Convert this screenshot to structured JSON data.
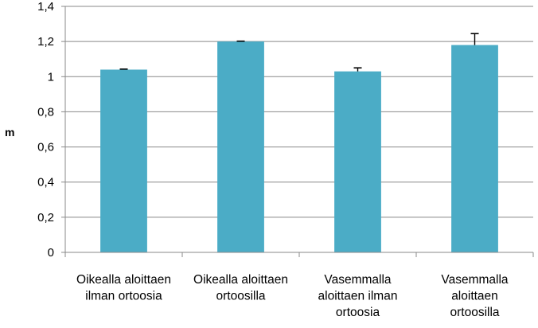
{
  "chart_data": {
    "type": "bar",
    "title": "",
    "xlabel": "",
    "ylabel": "m",
    "ylim": [
      0,
      1.4
    ],
    "yticks": [
      {
        "value": 0,
        "label": "0"
      },
      {
        "value": 0.2,
        "label": "0,2"
      },
      {
        "value": 0.4,
        "label": "0,4"
      },
      {
        "value": 0.6,
        "label": "0,6"
      },
      {
        "value": 0.8,
        "label": "0,8"
      },
      {
        "value": 1.0,
        "label": "1"
      },
      {
        "value": 1.2,
        "label": "1,2"
      },
      {
        "value": 1.4,
        "label": "1,4"
      }
    ],
    "categories": [
      [
        "Oikealla aloittaen",
        "ilman ortoosia"
      ],
      [
        "Oikealla aloittaen",
        "ortoosilla"
      ],
      [
        "Vasemmalla",
        "aloittaen ilman",
        "ortoosia"
      ],
      [
        "Vasemmalla",
        "aloittaen",
        "ortoosilla"
      ]
    ],
    "values": [
      1.04,
      1.2,
      1.03,
      1.18
    ],
    "errors": [
      0.003,
      0.002,
      0.02,
      0.065
    ],
    "grid": true,
    "legend": "none",
    "bar_color": "#4bacc6",
    "grid_color": "#898989"
  }
}
